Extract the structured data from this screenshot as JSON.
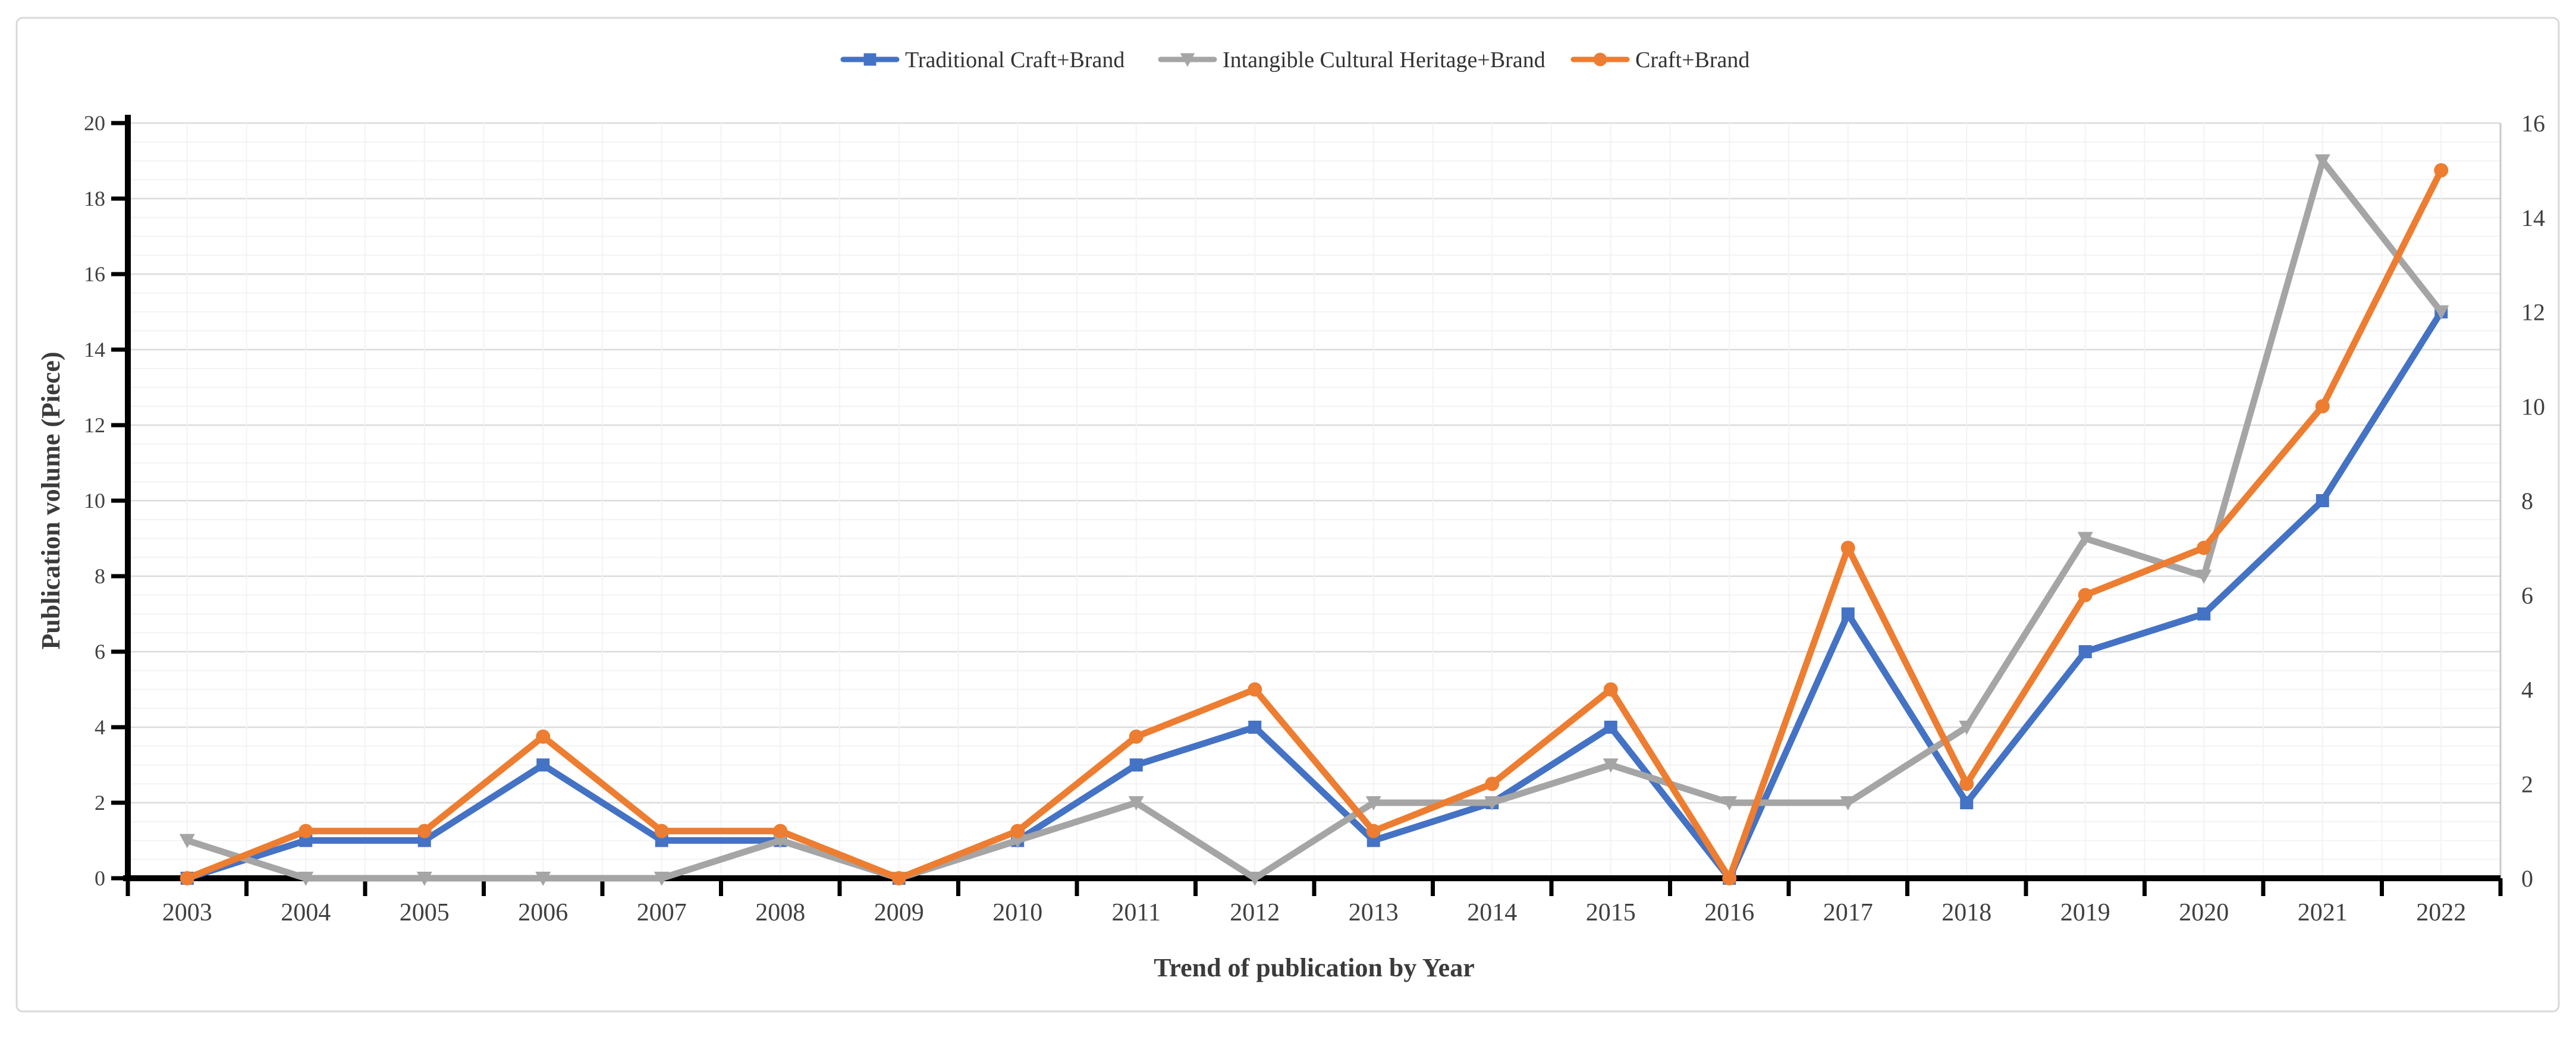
{
  "chart": {
    "frame_color": "#d9d9d9",
    "axis_color": "#000000",
    "tick_label_color": "#404040",
    "title_color": "#3b3b3b",
    "grid_minor_color": "#f3f3f3",
    "grid_major_color": "#dbdbdb",
    "plot_right_edge_color": "#c9c9c9",
    "background_color": "#ffffff"
  },
  "chart_data": {
    "type": "line",
    "title": "",
    "xlabel": "Trend of publication by Year",
    "ylabel": "Publication volume (Piece)",
    "categories": [
      "2003",
      "2004",
      "2005",
      "2006",
      "2007",
      "2008",
      "2009",
      "2010",
      "2011",
      "2012",
      "2013",
      "2014",
      "2015",
      "2016",
      "2017",
      "2018",
      "2019",
      "2020",
      "2021",
      "2022"
    ],
    "series": [
      {
        "name": "Traditional Craft+Brand",
        "color": "#4472C4",
        "axis": "left",
        "marker": "square",
        "values": [
          0,
          1,
          1,
          3,
          1,
          1,
          0,
          1,
          3,
          4,
          1,
          2,
          4,
          0,
          7,
          2,
          6,
          7,
          10,
          15
        ]
      },
      {
        "name": "Intangible Cultural Heritage+Brand",
        "color": "#A5A5A5",
        "axis": "left",
        "marker": "triangle",
        "values": [
          1,
          0,
          0,
          0,
          0,
          1,
          0,
          1,
          2,
          0,
          2,
          2,
          3,
          2,
          2,
          4,
          9,
          8,
          19,
          15
        ]
      },
      {
        "name": "Craft+Brand",
        "color": "#ED7D31",
        "axis": "right",
        "marker": "circle",
        "values": [
          0,
          1,
          1,
          3,
          1,
          1,
          0,
          1,
          3,
          4,
          1,
          2,
          4,
          0,
          7,
          2,
          6,
          7,
          10,
          15
        ]
      }
    ],
    "left_axis": {
      "min": 0,
      "max": 20,
      "major_step": 2,
      "minor_step": 0.5,
      "tick_labels": [
        "0",
        "2",
        "4",
        "6",
        "8",
        "10",
        "12",
        "14",
        "16",
        "18",
        "20"
      ]
    },
    "right_axis": {
      "min": 0,
      "max": 16,
      "major_step": 2,
      "tick_labels": [
        "0",
        "2",
        "4",
        "6",
        "8",
        "10",
        "12",
        "14",
        "16"
      ]
    },
    "legend_position": "top",
    "grid": true
  }
}
